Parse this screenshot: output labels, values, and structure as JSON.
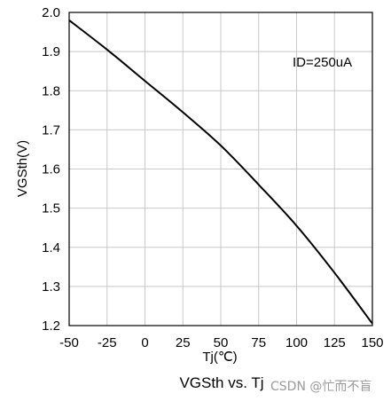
{
  "chart_data": {
    "type": "line",
    "title": "VGSth vs. Tj",
    "xlabel": "Tj(℃)",
    "ylabel": "VGSth(V)",
    "annotation": "ID=250uA",
    "xlim": [
      -50,
      150
    ],
    "ylim": [
      1.2,
      2.0
    ],
    "xticks": [
      "-50",
      "-25",
      "0",
      "25",
      "50",
      "75",
      "100",
      "125",
      "150"
    ],
    "yticks": [
      "1.2",
      "1.3",
      "1.4",
      "1.5",
      "1.6",
      "1.7",
      "1.8",
      "1.9",
      "2.0"
    ],
    "grid": true,
    "series": [
      {
        "x": [
          -50,
          -25,
          0,
          25,
          50,
          75,
          100,
          125,
          150
        ],
        "y": [
          1.98,
          1.905,
          1.825,
          1.745,
          1.66,
          1.56,
          1.455,
          1.335,
          1.205
        ]
      }
    ],
    "colors": {
      "line": "#000000",
      "grid": "#c8c8c8",
      "axis": "#000000"
    }
  },
  "watermark": "CSDN @忙而不盲"
}
